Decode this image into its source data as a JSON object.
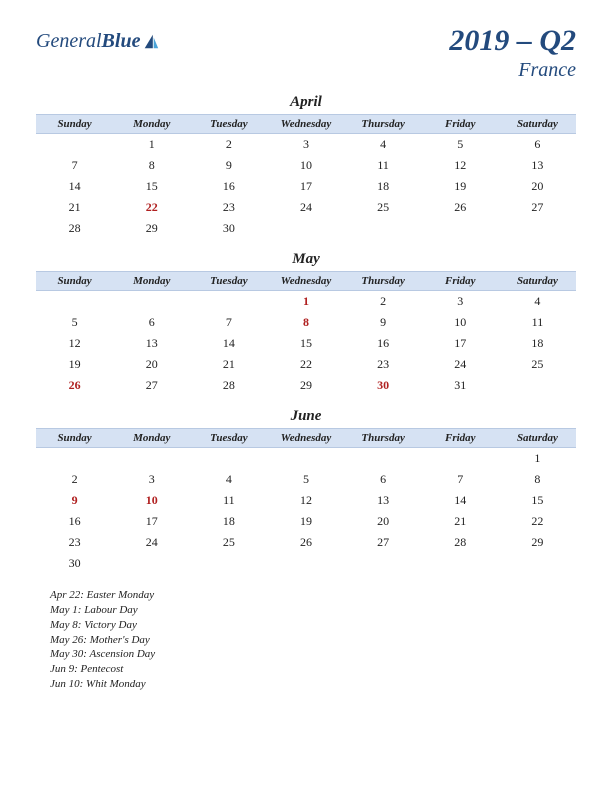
{
  "logo": {
    "word1": "General",
    "word2": "Blue"
  },
  "header": {
    "title": "2019 – Q2",
    "subtitle": "France"
  },
  "colors": {
    "brand": "#234a7d",
    "dow_bg": "#d6e2f3",
    "dow_border": "#b8c9e2",
    "text": "#222222",
    "holiday": "#b02020",
    "background": "#ffffff"
  },
  "daysOfWeek": [
    "Sunday",
    "Monday",
    "Tuesday",
    "Wednesday",
    "Thursday",
    "Friday",
    "Saturday"
  ],
  "months": [
    {
      "name": "April",
      "startDow": 1,
      "numDays": 30,
      "holidayDays": [
        22
      ]
    },
    {
      "name": "May",
      "startDow": 3,
      "numDays": 31,
      "holidayDays": [
        1,
        8,
        26,
        30
      ]
    },
    {
      "name": "June",
      "startDow": 6,
      "numDays": 30,
      "holidayDays": [
        9,
        10
      ]
    }
  ],
  "holidays": [
    "Apr 22: Easter Monday",
    "May 1: Labour Day",
    "May 8: Victory Day",
    "May 26: Mother's Day",
    "May 30: Ascension Day",
    "Jun 9: Pentecost",
    "Jun 10: Whit Monday"
  ]
}
